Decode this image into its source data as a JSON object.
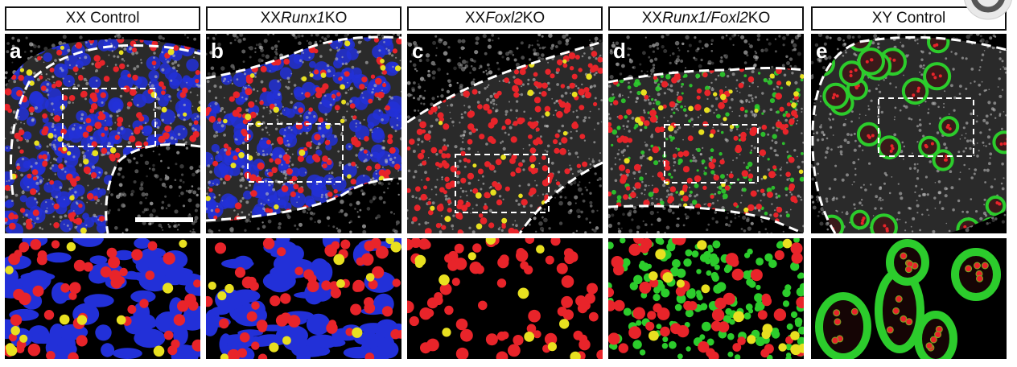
{
  "panels": [
    {
      "letter": "a",
      "title_prefix": "XX Control",
      "title_italic": "",
      "title_suffix": "",
      "channels": [
        "red",
        "blue",
        "yellow"
      ]
    },
    {
      "letter": "b",
      "title_prefix": "XX ",
      "title_italic": "Runx1",
      "title_suffix": " KO",
      "channels": [
        "red",
        "blue",
        "yellow"
      ]
    },
    {
      "letter": "c",
      "title_prefix": "XX ",
      "title_italic": "Foxl2",
      "title_suffix": " KO",
      "channels": [
        "red",
        "yellow"
      ]
    },
    {
      "letter": "d",
      "title_prefix": "XX ",
      "title_italic": "Runx1/Foxl2",
      "title_suffix": " KO",
      "channels": [
        "red",
        "green",
        "yellow"
      ]
    },
    {
      "letter": "e",
      "title_prefix": "XY Control",
      "title_italic": "",
      "title_suffix": "",
      "channels": [
        "green",
        "red"
      ]
    }
  ],
  "colors": {
    "red": "#e8242a",
    "blue": "#2230d8",
    "yellow": "#e8e020",
    "green": "#2ccc2c",
    "gray": "#9a9a9a",
    "black": "#000000"
  },
  "overlay_icon": "player-avatar-icon"
}
